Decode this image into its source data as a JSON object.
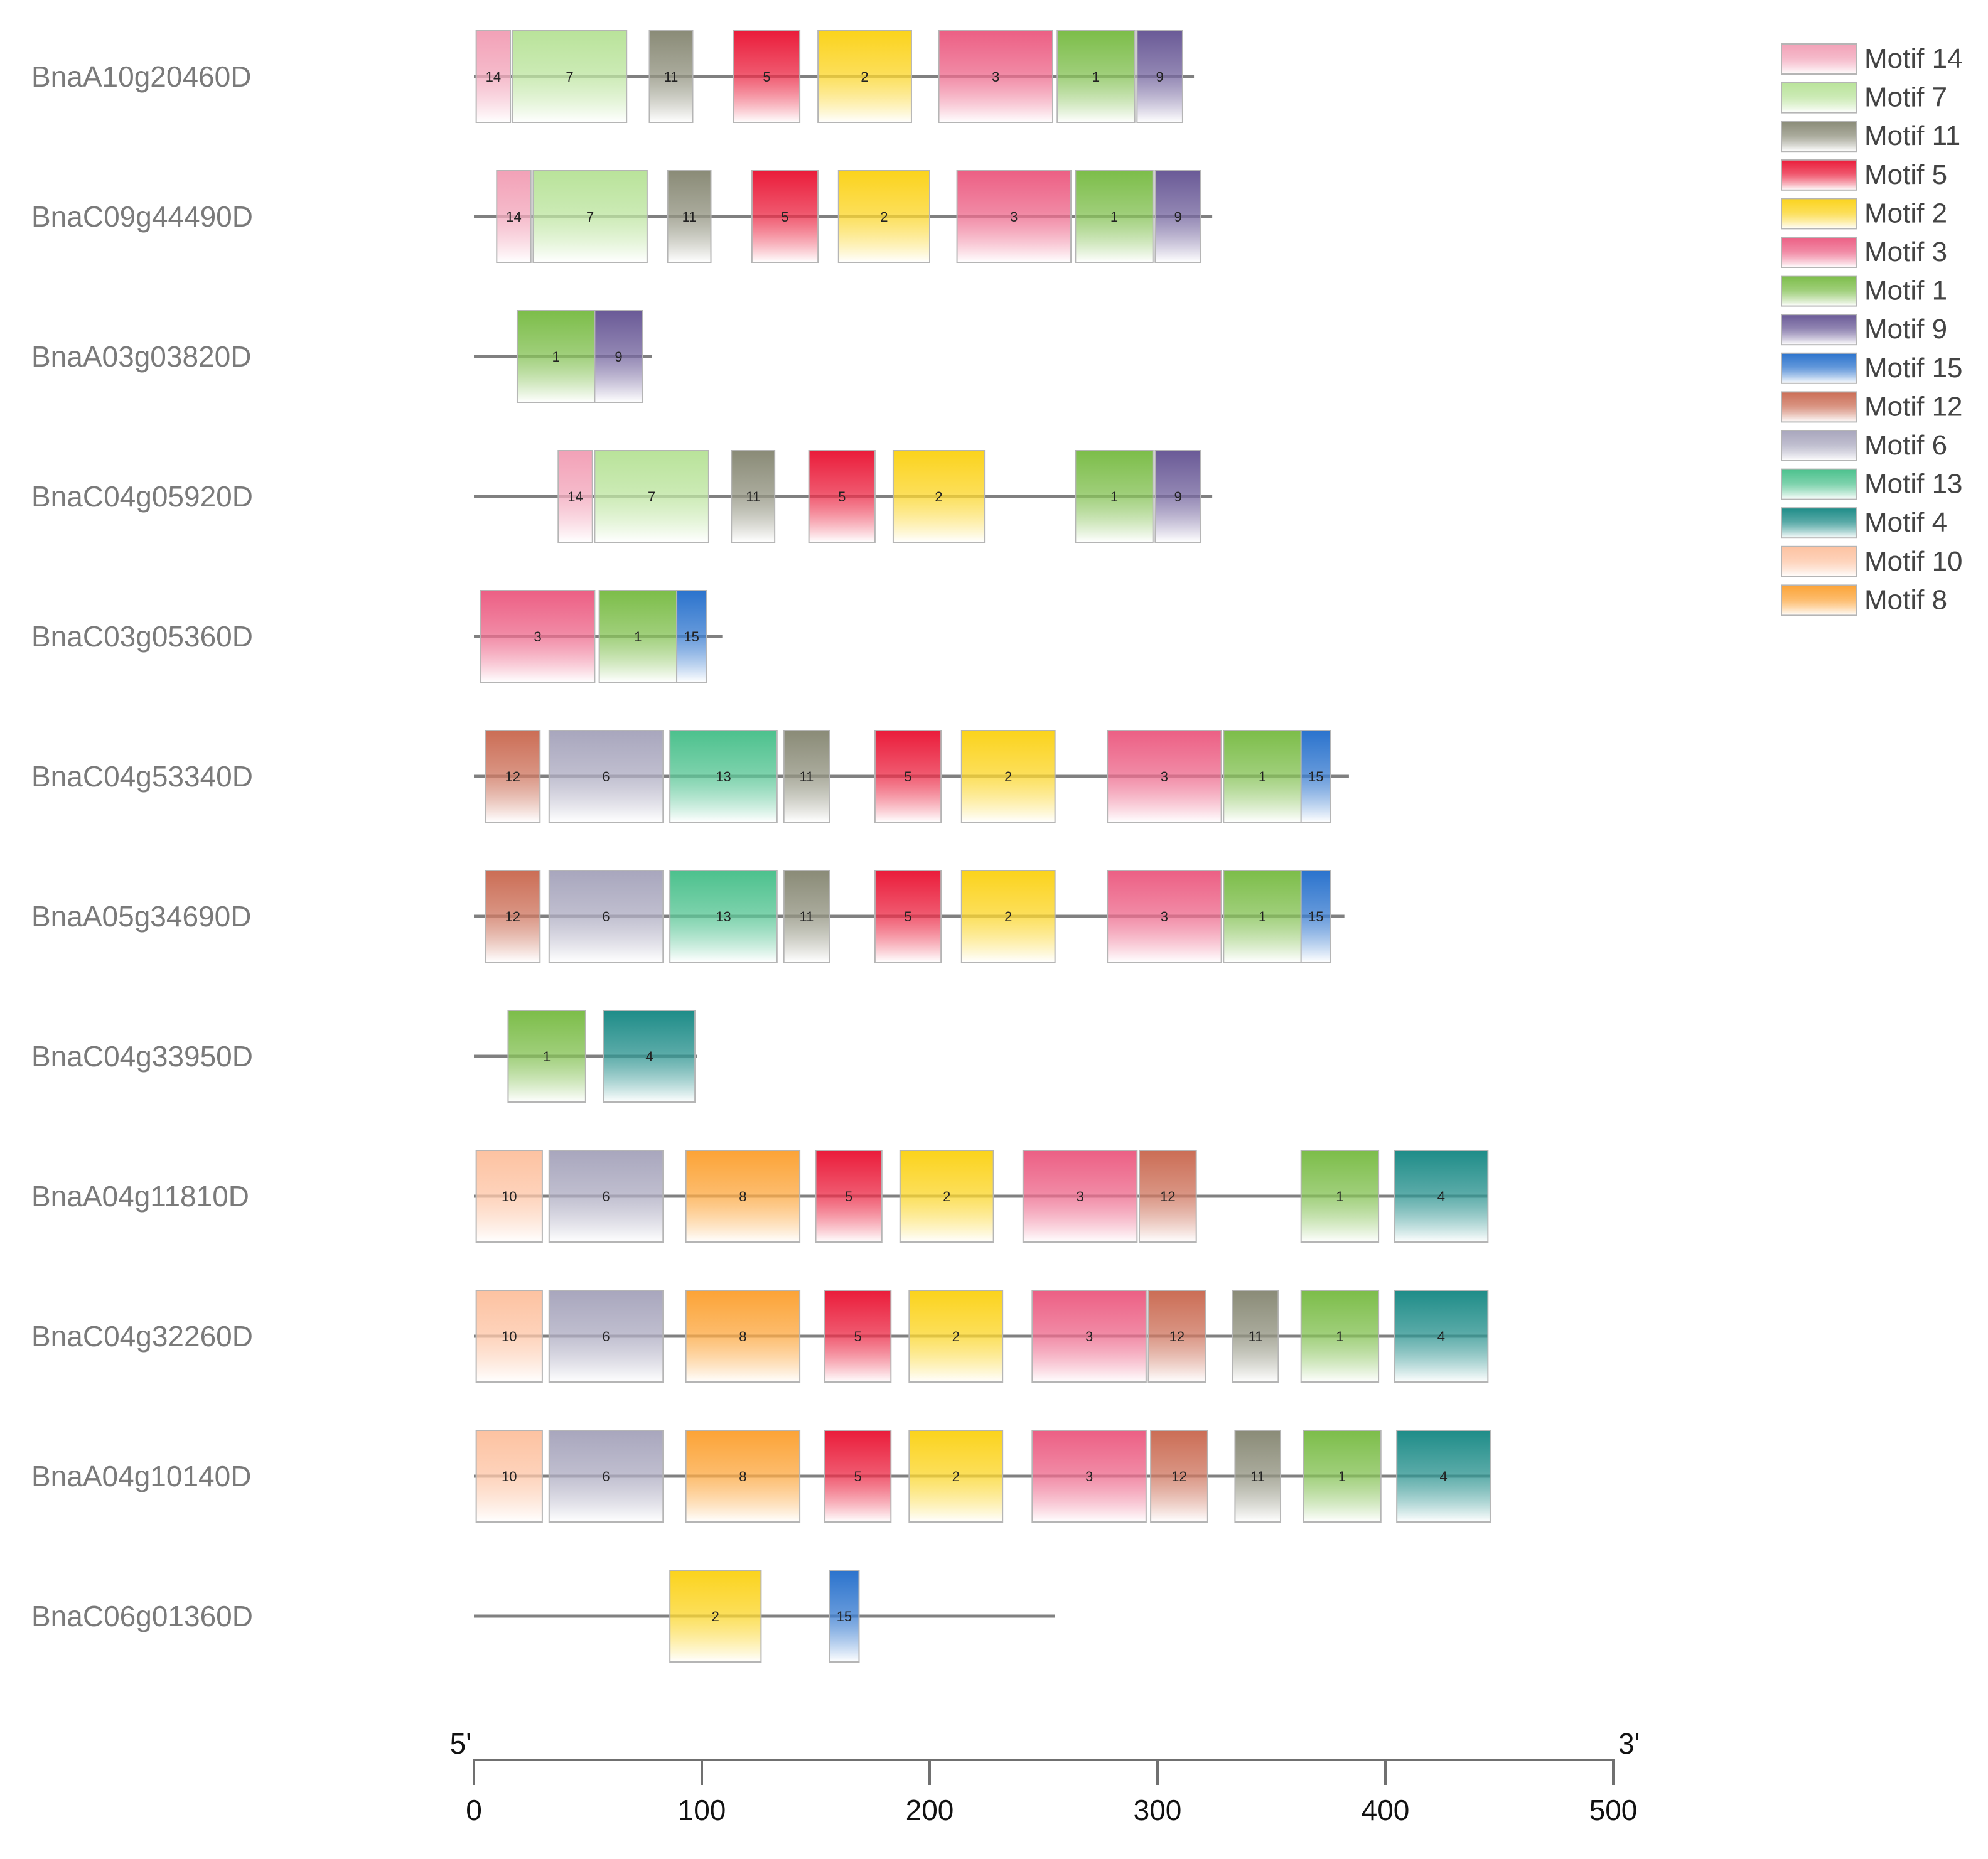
{
  "chart_data": {
    "type": "motif-diagram",
    "axis": {
      "start_label": "5'",
      "end_label": "3'",
      "range": [
        0,
        500
      ],
      "ticks": [
        "0",
        "100",
        "200",
        "300",
        "400",
        "500"
      ]
    },
    "legend": [
      {
        "label": "Motif 14",
        "motif": 14,
        "color": "#f2a1b7"
      },
      {
        "label": "Motif 7",
        "motif": 7,
        "color": "#b9e39a"
      },
      {
        "label": "Motif 11",
        "motif": 11,
        "color": "#8a8b77"
      },
      {
        "label": "Motif 5",
        "motif": 5,
        "color": "#ea1c3a"
      },
      {
        "label": "Motif 2",
        "motif": 2,
        "color": "#fbd31c"
      },
      {
        "label": "Motif 3",
        "motif": 3,
        "color": "#ec5f84"
      },
      {
        "label": "Motif 1",
        "motif": 1,
        "color": "#7cbd49"
      },
      {
        "label": "Motif 9",
        "motif": 9,
        "color": "#6a5a97"
      },
      {
        "label": "Motif 15",
        "motif": 15,
        "color": "#2b73cd"
      },
      {
        "label": "Motif 12",
        "motif": 12,
        "color": "#cb6d55"
      },
      {
        "label": "Motif 6",
        "motif": 6,
        "color": "#a8a6bd"
      },
      {
        "label": "Motif 13",
        "motif": 13,
        "color": "#4cc18d"
      },
      {
        "label": "Motif 4",
        "motif": 4,
        "color": "#1e8c88"
      },
      {
        "label": "Motif 10",
        "motif": 10,
        "color": "#fdc2a1"
      },
      {
        "label": "Motif 8",
        "motif": 8,
        "color": "#fca336"
      }
    ],
    "genes": [
      {
        "name": "BnaA10g20460D",
        "length": 316,
        "motifs": [
          {
            "id": 14,
            "start": 1,
            "end": 16
          },
          {
            "id": 7,
            "start": 17,
            "end": 67
          },
          {
            "id": 11,
            "start": 77,
            "end": 96
          },
          {
            "id": 5,
            "start": 114,
            "end": 143
          },
          {
            "id": 2,
            "start": 151,
            "end": 192
          },
          {
            "id": 3,
            "start": 204,
            "end": 254
          },
          {
            "id": 1,
            "start": 256,
            "end": 290
          },
          {
            "id": 9,
            "start": 291,
            "end": 311
          }
        ]
      },
      {
        "name": "BnaC09g44490D",
        "length": 324,
        "motifs": [
          {
            "id": 14,
            "start": 10,
            "end": 25
          },
          {
            "id": 7,
            "start": 26,
            "end": 76
          },
          {
            "id": 11,
            "start": 85,
            "end": 104
          },
          {
            "id": 5,
            "start": 122,
            "end": 151
          },
          {
            "id": 2,
            "start": 160,
            "end": 200
          },
          {
            "id": 3,
            "start": 212,
            "end": 262
          },
          {
            "id": 1,
            "start": 264,
            "end": 298
          },
          {
            "id": 9,
            "start": 299,
            "end": 319
          }
        ]
      },
      {
        "name": "BnaA03g03820D",
        "length": 78,
        "motifs": [
          {
            "id": 1,
            "start": 19,
            "end": 53
          },
          {
            "id": 9,
            "start": 53,
            "end": 74
          }
        ]
      },
      {
        "name": "BnaC04g05920D",
        "length": 324,
        "motifs": [
          {
            "id": 14,
            "start": 37,
            "end": 52
          },
          {
            "id": 7,
            "start": 53,
            "end": 103
          },
          {
            "id": 11,
            "start": 113,
            "end": 132
          },
          {
            "id": 5,
            "start": 147,
            "end": 176
          },
          {
            "id": 2,
            "start": 184,
            "end": 224
          },
          {
            "id": 1,
            "start": 264,
            "end": 298
          },
          {
            "id": 9,
            "start": 299,
            "end": 319
          }
        ]
      },
      {
        "name": "BnaC03g05360D",
        "length": 109,
        "motifs": [
          {
            "id": 3,
            "start": 3,
            "end": 53
          },
          {
            "id": 1,
            "start": 55,
            "end": 89
          },
          {
            "id": 15,
            "start": 89,
            "end": 102
          }
        ]
      },
      {
        "name": "BnaC04g53340D",
        "length": 384,
        "motifs": [
          {
            "id": 12,
            "start": 5,
            "end": 29
          },
          {
            "id": 6,
            "start": 33,
            "end": 83
          },
          {
            "id": 13,
            "start": 86,
            "end": 133
          },
          {
            "id": 11,
            "start": 136,
            "end": 156
          },
          {
            "id": 5,
            "start": 176,
            "end": 205
          },
          {
            "id": 2,
            "start": 214,
            "end": 255
          },
          {
            "id": 3,
            "start": 278,
            "end": 328
          },
          {
            "id": 1,
            "start": 329,
            "end": 363
          },
          {
            "id": 15,
            "start": 363,
            "end": 376
          }
        ]
      },
      {
        "name": "BnaA05g34690D",
        "length": 382,
        "motifs": [
          {
            "id": 12,
            "start": 5,
            "end": 29
          },
          {
            "id": 6,
            "start": 33,
            "end": 83
          },
          {
            "id": 13,
            "start": 86,
            "end": 133
          },
          {
            "id": 11,
            "start": 136,
            "end": 156
          },
          {
            "id": 5,
            "start": 176,
            "end": 205
          },
          {
            "id": 2,
            "start": 214,
            "end": 255
          },
          {
            "id": 3,
            "start": 278,
            "end": 328
          },
          {
            "id": 1,
            "start": 329,
            "end": 363
          },
          {
            "id": 15,
            "start": 363,
            "end": 376
          }
        ]
      },
      {
        "name": "BnaC04g33950D",
        "length": 98,
        "motifs": [
          {
            "id": 1,
            "start": 15,
            "end": 49
          },
          {
            "id": 4,
            "start": 57,
            "end": 97
          }
        ]
      },
      {
        "name": "BnaA04g11810D",
        "length": 445,
        "motifs": [
          {
            "id": 10,
            "start": 1,
            "end": 30
          },
          {
            "id": 6,
            "start": 33,
            "end": 83
          },
          {
            "id": 8,
            "start": 93,
            "end": 143
          },
          {
            "id": 5,
            "start": 150,
            "end": 179
          },
          {
            "id": 2,
            "start": 187,
            "end": 228
          },
          {
            "id": 3,
            "start": 241,
            "end": 291
          },
          {
            "id": 12,
            "start": 292,
            "end": 317
          },
          {
            "id": 1,
            "start": 363,
            "end": 397
          },
          {
            "id": 4,
            "start": 404,
            "end": 445
          }
        ]
      },
      {
        "name": "BnaC04g32260D",
        "length": 445,
        "motifs": [
          {
            "id": 10,
            "start": 1,
            "end": 30
          },
          {
            "id": 6,
            "start": 33,
            "end": 83
          },
          {
            "id": 8,
            "start": 93,
            "end": 143
          },
          {
            "id": 5,
            "start": 154,
            "end": 183
          },
          {
            "id": 2,
            "start": 191,
            "end": 232
          },
          {
            "id": 3,
            "start": 245,
            "end": 295
          },
          {
            "id": 12,
            "start": 296,
            "end": 321
          },
          {
            "id": 11,
            "start": 333,
            "end": 353
          },
          {
            "id": 1,
            "start": 363,
            "end": 397
          },
          {
            "id": 4,
            "start": 404,
            "end": 445
          }
        ]
      },
      {
        "name": "BnaA04g10140D",
        "length": 446,
        "motifs": [
          {
            "id": 10,
            "start": 1,
            "end": 30
          },
          {
            "id": 6,
            "start": 33,
            "end": 83
          },
          {
            "id": 8,
            "start": 93,
            "end": 143
          },
          {
            "id": 5,
            "start": 154,
            "end": 183
          },
          {
            "id": 2,
            "start": 191,
            "end": 232
          },
          {
            "id": 3,
            "start": 245,
            "end": 295
          },
          {
            "id": 12,
            "start": 297,
            "end": 322
          },
          {
            "id": 11,
            "start": 334,
            "end": 354
          },
          {
            "id": 1,
            "start": 364,
            "end": 398
          },
          {
            "id": 4,
            "start": 405,
            "end": 446
          }
        ]
      },
      {
        "name": "BnaC06g01360D",
        "length": 255,
        "motifs": [
          {
            "id": 2,
            "start": 86,
            "end": 126
          },
          {
            "id": 15,
            "start": 156,
            "end": 169
          }
        ]
      }
    ]
  }
}
